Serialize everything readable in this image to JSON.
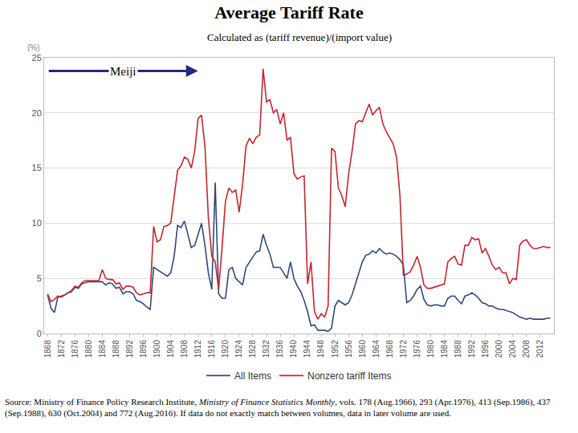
{
  "chart_data": {
    "type": "line",
    "title": "Average Tariff Rate",
    "subtitle": "Calculated as (tariff revenue)/(import value)",
    "y_label": "(%)",
    "annotations": [
      {
        "text": "Meiji",
        "x_start": 1868,
        "x_end": 1912,
        "y": 23.8
      }
    ],
    "x": [
      1868,
      1869,
      1870,
      1871,
      1872,
      1873,
      1874,
      1875,
      1876,
      1877,
      1878,
      1879,
      1880,
      1881,
      1882,
      1883,
      1884,
      1885,
      1886,
      1887,
      1888,
      1889,
      1890,
      1891,
      1892,
      1893,
      1894,
      1895,
      1896,
      1897,
      1898,
      1899,
      1900,
      1901,
      1902,
      1903,
      1904,
      1905,
      1906,
      1907,
      1908,
      1909,
      1910,
      1911,
      1912,
      1913,
      1914,
      1915,
      1916,
      1917,
      1918,
      1919,
      1920,
      1921,
      1922,
      1923,
      1924,
      1925,
      1926,
      1927,
      1928,
      1929,
      1930,
      1931,
      1932,
      1933,
      1934,
      1935,
      1936,
      1937,
      1938,
      1939,
      1940,
      1941,
      1942,
      1943,
      1944,
      1945,
      1946,
      1947,
      1948,
      1949,
      1950,
      1951,
      1952,
      1953,
      1954,
      1955,
      1956,
      1957,
      1958,
      1959,
      1960,
      1961,
      1962,
      1963,
      1964,
      1965,
      1966,
      1967,
      1968,
      1969,
      1970,
      1971,
      1972,
      1973,
      1974,
      1975,
      1976,
      1977,
      1978,
      1979,
      1980,
      1981,
      1982,
      1983,
      1984,
      1985,
      1986,
      1987,
      1988,
      1989,
      1990,
      1991,
      1992,
      1993,
      1994,
      1995,
      1996,
      1997,
      1998,
      1999,
      2000,
      2001,
      2002,
      2003,
      2004,
      2005,
      2006,
      2007,
      2008,
      2009,
      2010,
      2011,
      2012,
      2013,
      2014,
      2015
    ],
    "series": [
      {
        "name": "All Items",
        "color": "#2f4a78",
        "values": [
          3.5,
          2.3,
          1.9,
          3.3,
          3.4,
          3.5,
          3.7,
          3.8,
          4.2,
          4.1,
          4.5,
          4.6,
          4.7,
          4.7,
          4.7,
          4.7,
          4.7,
          4.4,
          4.6,
          4.5,
          4.1,
          4.2,
          3.6,
          3.8,
          3.8,
          3.6,
          3.0,
          2.9,
          2.7,
          2.4,
          2.2,
          6.0,
          5.8,
          5.6,
          5.4,
          5.2,
          5.5,
          7.0,
          9.8,
          9.6,
          10.2,
          9.0,
          7.8,
          8.0,
          9.0,
          10.0,
          8.0,
          5.5,
          4.0,
          13.7,
          3.6,
          3.2,
          3.2,
          5.8,
          6.0,
          5.0,
          4.7,
          4.4,
          6.0,
          6.5,
          7.0,
          7.4,
          7.5,
          9.0,
          8.0,
          7.2,
          6.0,
          6.0,
          6.0,
          5.5,
          5.0,
          6.5,
          5.0,
          4.3,
          3.8,
          3.0,
          2.0,
          0.7,
          0.8,
          0.3,
          0.3,
          0.3,
          0.2,
          0.5,
          2.5,
          3.0,
          2.8,
          2.6,
          2.8,
          3.5,
          4.5,
          5.5,
          6.5,
          7.1,
          7.2,
          7.5,
          7.3,
          7.7,
          7.4,
          7.2,
          7.3,
          7.2,
          7.0,
          6.7,
          6.2,
          2.8,
          3.0,
          3.4,
          4.0,
          4.3,
          3.1,
          2.6,
          2.5,
          2.6,
          2.6,
          2.5,
          2.5,
          3.2,
          3.4,
          3.4,
          3.0,
          2.7,
          3.4,
          3.5,
          3.7,
          3.5,
          3.2,
          2.8,
          2.7,
          2.5,
          2.5,
          2.3,
          2.2,
          2.2,
          2.1,
          2.0,
          1.9,
          1.7,
          1.5,
          1.4,
          1.3,
          1.4,
          1.3,
          1.3,
          1.3,
          1.3,
          1.4,
          1.4
        ]
      },
      {
        "name": "Nonzero tariff Items",
        "color": "#c4262e",
        "values": [
          3.6,
          2.9,
          3.1,
          3.4,
          3.3,
          3.5,
          3.7,
          3.9,
          4.3,
          4.2,
          4.6,
          4.8,
          4.8,
          4.8,
          4.8,
          4.8,
          5.8,
          5.0,
          4.9,
          4.9,
          4.5,
          4.6,
          4.0,
          4.3,
          4.3,
          4.2,
          3.7,
          3.5,
          3.6,
          3.7,
          3.7,
          9.7,
          8.3,
          8.5,
          9.7,
          9.8,
          10.0,
          12.5,
          14.8,
          15.2,
          16.0,
          15.8,
          15.0,
          16.5,
          19.5,
          19.8,
          17.0,
          10.5,
          7.0,
          6.5,
          4.0,
          7.8,
          12.0,
          13.2,
          12.8,
          13.0,
          11.0,
          13.5,
          17.0,
          17.7,
          17.2,
          17.8,
          18.0,
          24.0,
          21.0,
          21.2,
          20.0,
          20.3,
          19.0,
          20.0,
          17.5,
          17.8,
          14.5,
          14.0,
          14.2,
          14.3,
          4.5,
          6.5,
          2.0,
          1.3,
          1.8,
          1.5,
          2.5,
          16.8,
          16.5,
          13.2,
          12.5,
          11.5,
          14.5,
          16.5,
          19.0,
          19.3,
          19.2,
          20.0,
          20.8,
          19.8,
          20.2,
          20.5,
          19.0,
          18.3,
          17.8,
          17.2,
          16.0,
          12.5,
          5.3,
          5.4,
          5.6,
          6.2,
          7.0,
          6.0,
          4.4,
          4.1,
          4.1,
          4.2,
          4.3,
          4.4,
          4.5,
          6.5,
          6.8,
          7.0,
          6.3,
          6.2,
          8.0,
          8.0,
          8.7,
          8.5,
          8.6,
          7.3,
          7.7,
          7.0,
          6.2,
          5.8,
          6.0,
          5.5,
          5.5,
          4.5,
          5.0,
          4.9,
          8.0,
          8.4,
          8.5,
          8.0,
          7.7,
          7.7,
          7.8,
          7.9,
          7.8,
          7.8
        ]
      }
    ],
    "xlim": [
      1867,
      2016
    ],
    "xticks": [
      1868,
      1872,
      1876,
      1880,
      1884,
      1888,
      1892,
      1896,
      1900,
      1904,
      1908,
      1912,
      1916,
      1920,
      1924,
      1928,
      1932,
      1936,
      1940,
      1944,
      1948,
      1952,
      1956,
      1960,
      1964,
      1968,
      1972,
      1976,
      1980,
      1984,
      1988,
      1992,
      1996,
      2000,
      2004,
      2008,
      2012
    ],
    "ylim": [
      0,
      25
    ],
    "yticks": [
      0,
      5,
      10,
      15,
      20,
      25
    ],
    "grid": true,
    "legend": "bottom",
    "source": [
      "Source: Ministry of Finance Policy Research Institute, ",
      "Ministry of Finance Statistics Monthly",
      ", vols. 178 (Aug.1966), 293 (Apr.1976), 413 (Sep.1986), 437 (Sep.1988), 630 (Oct.2004) and 772 (Aug.2016). If data do not exactly match between volumes, data in later volume are used."
    ]
  }
}
